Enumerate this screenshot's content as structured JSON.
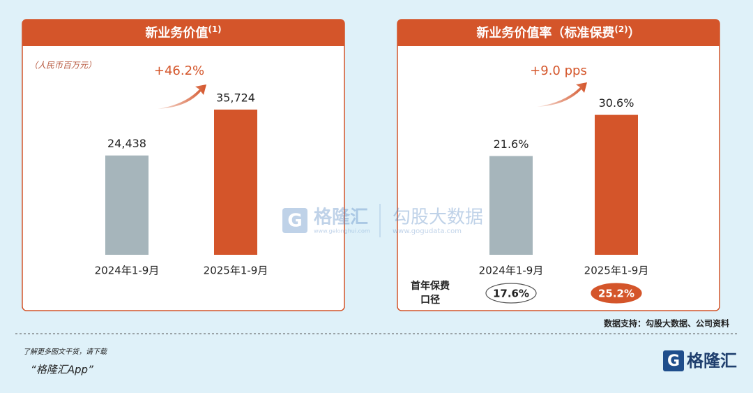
{
  "chart_data": [
    {
      "type": "bar",
      "title": "新业务价值",
      "title_note": "(1)",
      "subtitle": "（人民币百万元）",
      "categories": [
        "2024年1-9月",
        "2025年1-9月"
      ],
      "values": [
        24438,
        35724
      ],
      "value_labels": [
        "24,438",
        "35,724"
      ],
      "colors": [
        "#a6b5bb",
        "#d4552a"
      ],
      "annotation": "+46.2%",
      "ylim": [
        0,
        45000
      ]
    },
    {
      "type": "bar",
      "title": "新业务价值率（标准保费",
      "title_note": "(2)",
      "title_end": "）",
      "categories": [
        "2024年1-9月",
        "2025年1-9月"
      ],
      "values": [
        21.6,
        30.6
      ],
      "value_labels": [
        "21.6%",
        "30.6%"
      ],
      "colors": [
        "#a6b5bb",
        "#d4552a"
      ],
      "annotation": "+9.0 pps",
      "ylim": [
        0,
        40
      ],
      "first_year_premium": {
        "label": [
          "首年保费",
          "口径"
        ],
        "values": [
          17.6,
          25.2
        ],
        "value_labels": [
          "17.6%",
          "25.2%"
        ]
      }
    }
  ],
  "source": "数据支持：勾股大数据、公司资料",
  "footer": {
    "note": "了解更多图文干货，请下载",
    "app": "“格隆汇App”",
    "logo": "格隆汇"
  },
  "watermark": {
    "brand": "格隆汇",
    "brand_url": "www.gelonghui.com",
    "partner": "勾股大数据",
    "partner_url": "www.gogudata.com"
  }
}
